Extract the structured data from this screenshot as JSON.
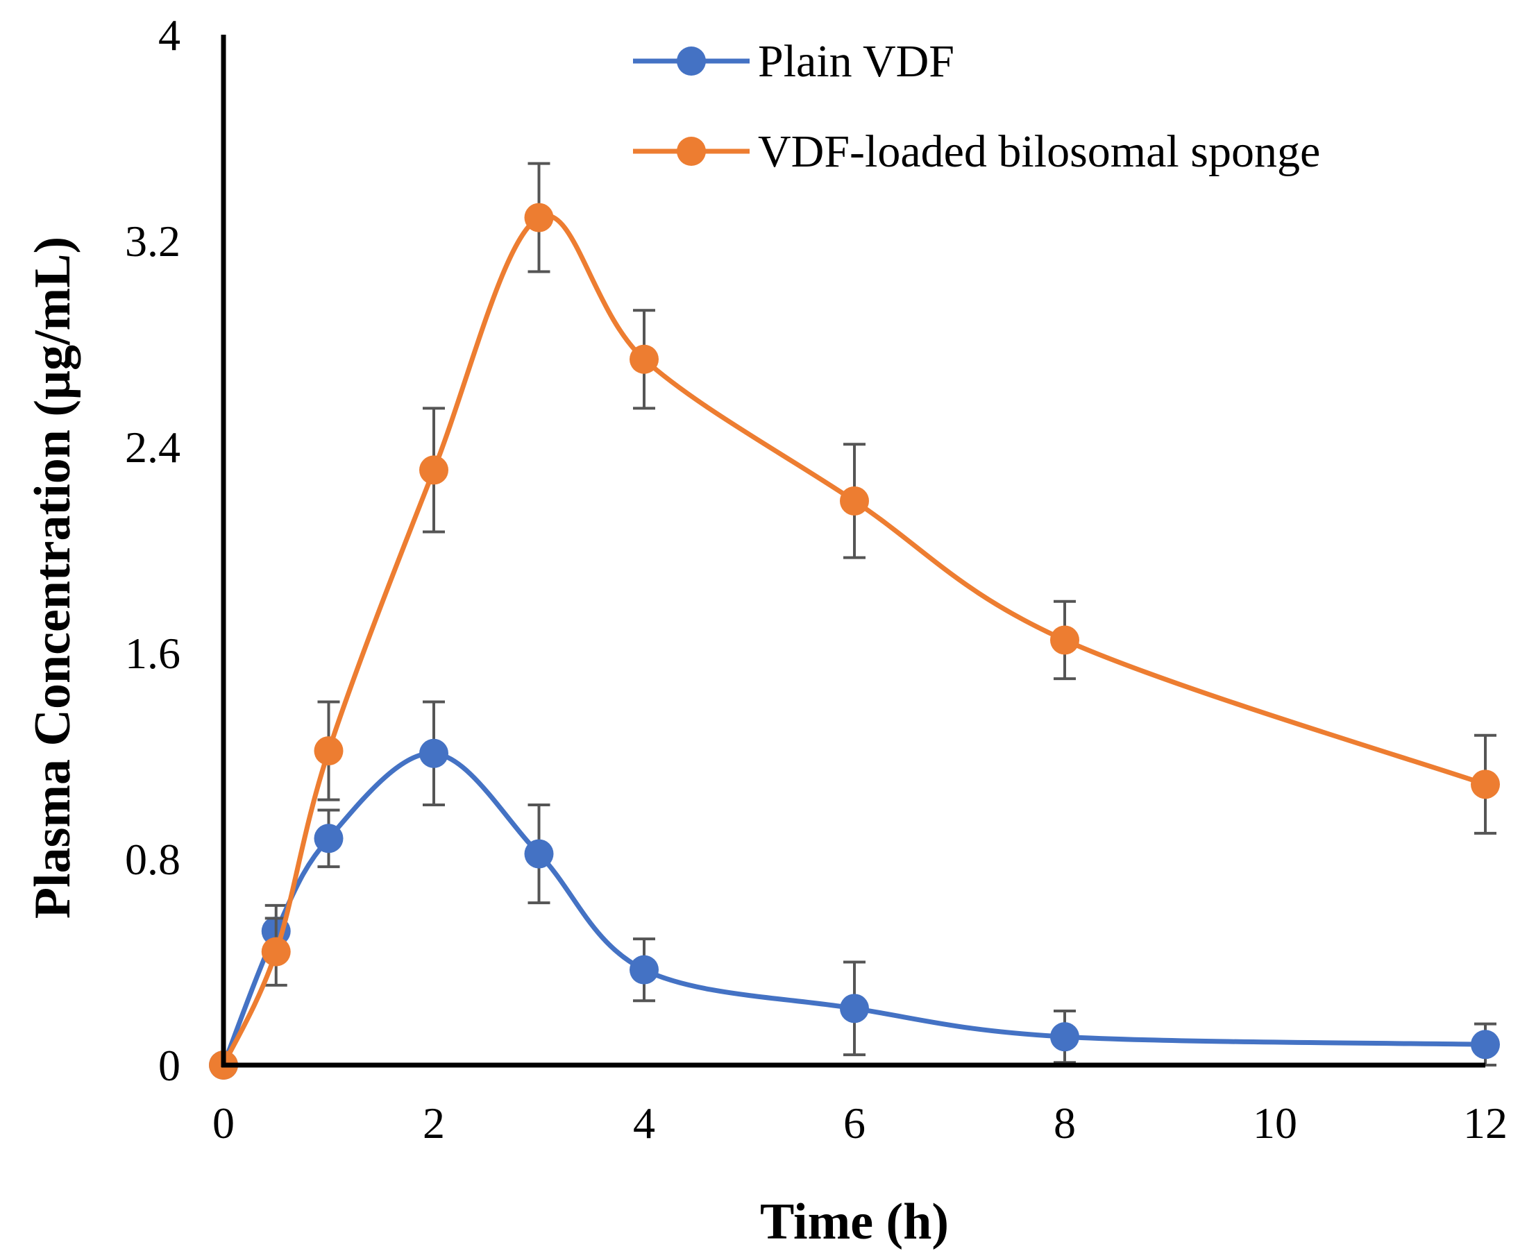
{
  "chart_data": {
    "type": "line",
    "title": "",
    "xlabel": "Time (h)",
    "ylabel": "Plasma Concentration (μg/mL)",
    "xlim": [
      0,
      12
    ],
    "ylim": [
      0,
      4
    ],
    "x_ticks": [
      0,
      2,
      4,
      6,
      8,
      10,
      12
    ],
    "x_tick_labels": [
      "0",
      "2",
      "4",
      "6",
      "8",
      "10",
      "12"
    ],
    "y_ticks": [
      0,
      0.8,
      1.6,
      2.4,
      3.2,
      4
    ],
    "y_tick_labels": [
      "0",
      "0.8",
      "1.6",
      "2.4",
      "3.2",
      "4"
    ],
    "grid": false,
    "legend_position": "top-right",
    "series": [
      {
        "name": "Plain VDF",
        "color": "#4472C4",
        "x": [
          0,
          0.5,
          1,
          2,
          3,
          4,
          6,
          8,
          12
        ],
        "y": [
          0,
          0.52,
          0.88,
          1.21,
          0.82,
          0.37,
          0.22,
          0.11,
          0.08
        ],
        "error": [
          0,
          0.1,
          0.11,
          0.2,
          0.19,
          0.12,
          0.18,
          0.1,
          0.08
        ]
      },
      {
        "name": "VDF-loaded bilosomal sponge",
        "color": "#ED7D31",
        "x": [
          0,
          0.5,
          1,
          2,
          3,
          4,
          6,
          8,
          12
        ],
        "y": [
          0,
          0.44,
          1.22,
          2.31,
          3.29,
          2.74,
          2.19,
          1.65,
          1.09
        ],
        "error": [
          0,
          0.13,
          0.19,
          0.24,
          0.21,
          0.19,
          0.22,
          0.15,
          0.19
        ]
      }
    ]
  }
}
